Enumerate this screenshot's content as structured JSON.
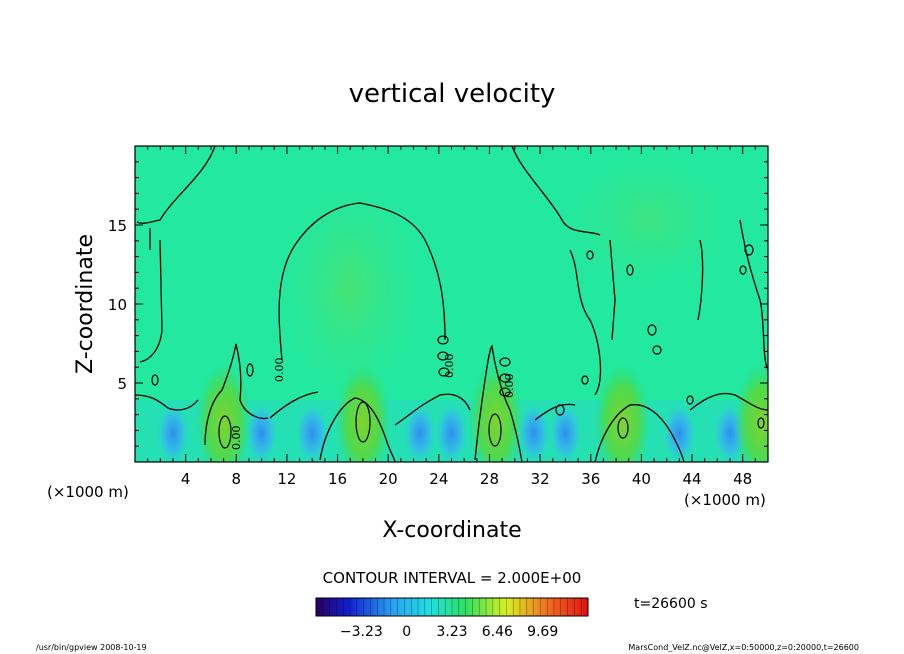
{
  "chart_data": {
    "type": "heatmap",
    "title": "vertical velocity",
    "xlabel": "X-coordinate",
    "ylabel": "Z-coordinate",
    "x_unit": "(×1000 m)",
    "z_unit": "(×1000 m)",
    "xlim": [
      0,
      50
    ],
    "ylim": [
      0,
      20
    ],
    "x_ticks": [
      4,
      8,
      12,
      16,
      20,
      24,
      28,
      32,
      36,
      40,
      44,
      48
    ],
    "y_ticks": [
      5,
      10,
      15
    ],
    "contour_interval_label": "CONTOUR INTERVAL = 2.000E+00",
    "time_label": "t=26600 s",
    "colorbar_ticks": [
      "−3.23",
      "0",
      "3.23",
      "6.46",
      "9.69"
    ],
    "colorbar_range": [
      -6.46,
      12.92
    ],
    "contour_labels": [
      "0.00",
      "0.00",
      "0.00",
      "0.00"
    ],
    "updrafts_x": [
      7,
      18,
      28.5,
      38.5,
      49.5
    ],
    "downdrafts_x": [
      3,
      10,
      14,
      22.5,
      25,
      31.5,
      34,
      43,
      47
    ]
  },
  "footer": {
    "left": "/usr/bin/gpview   2008-10-19",
    "right": "MarsCond_VelZ.nc@VelZ,x=0:50000,z=0:20000,t=26600"
  },
  "colors": {
    "background_field": "#22e8a0",
    "updraft": "#64dc3a",
    "downdraft": "#2aa6f0",
    "contour": "#000000"
  }
}
